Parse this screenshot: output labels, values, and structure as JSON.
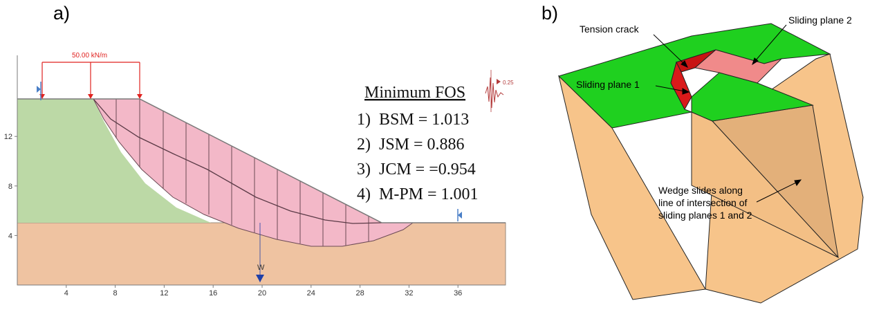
{
  "panels": {
    "a": {
      "label": "a)",
      "load_label": "50.00 kN/m",
      "seismic_label": "0.25",
      "water_label": "W",
      "fos_title": "Minimum FOS",
      "fos_results": [
        "1)  BSM = 1.013",
        "2)  JSM = 0.886",
        "3)  JCM = =0.954",
        "4)  M-PM = 1.001"
      ],
      "x_ticks": [
        "4",
        "8",
        "12",
        "16",
        "20",
        "24",
        "28",
        "32",
        "36"
      ],
      "y_ticks": [
        "12",
        "8",
        "4"
      ],
      "colors": {
        "upper_soil": "#bcd9a6",
        "lower_soil": "#efc3a1",
        "slip_mass": "#f3b8c8",
        "load": "#e0221f",
        "water": "#1f3fa8"
      }
    },
    "b": {
      "label": "b)",
      "annotations": {
        "tension_crack": "Tension crack",
        "sliding_plane_2": "Sliding plane 2",
        "sliding_plane_1": "Sliding plane 1",
        "wedge_line1": "Wedge slides along",
        "wedge_line2": "line of intersection of",
        "wedge_line3": "sliding planes 1 and 2"
      },
      "colors": {
        "top_surface": "#1fd01f",
        "rock_face": "#f7c48a",
        "wedge_face": "#e8b47c",
        "crack_dark": "#c81414",
        "crack_light": "#f08a8a"
      }
    }
  }
}
